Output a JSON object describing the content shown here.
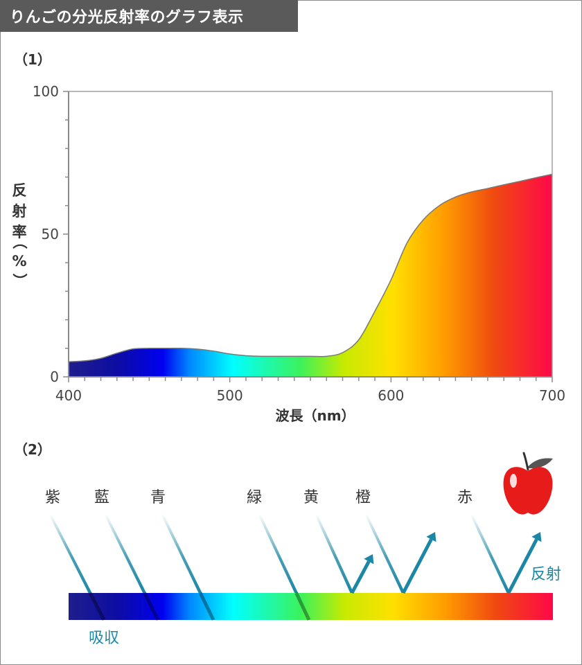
{
  "header": {
    "title": "りんごの分光反射率のグラフ表示"
  },
  "section1": {
    "label": "（1）"
  },
  "section2": {
    "label": "（2）"
  },
  "chart_data": {
    "type": "area",
    "xlabel": "波長（nm）",
    "ylabel": "反射率（%）",
    "ylabel_lines": [
      "反",
      "射",
      "率",
      "（",
      "%",
      "）"
    ],
    "xlim": [
      400,
      700
    ],
    "ylim": [
      0,
      100
    ],
    "x_ticks": [
      "400",
      "500",
      "600",
      "700"
    ],
    "y_ticks": [
      "0",
      "50",
      "100"
    ],
    "x": [
      400,
      410,
      420,
      430,
      440,
      450,
      460,
      470,
      480,
      490,
      500,
      510,
      520,
      530,
      540,
      550,
      560,
      570,
      580,
      590,
      600,
      610,
      620,
      630,
      640,
      650,
      660,
      670,
      680,
      690,
      700
    ],
    "values": [
      5.3,
      5.6,
      6.5,
      8.3,
      9.8,
      10.0,
      10.0,
      10.0,
      9.7,
      9.0,
      8.0,
      7.4,
      7.2,
      7.2,
      7.2,
      7.2,
      7.2,
      8.5,
      13,
      23,
      34,
      47,
      55,
      60,
      63,
      64.8,
      66,
      67.3,
      68.5,
      69.8,
      71
    ],
    "colors": {
      "axis": "#8a8a8a",
      "curve": "#777777"
    }
  },
  "diagram": {
    "colors": [
      "紫",
      "藍",
      "青",
      "緑",
      "黄",
      "橙",
      "赤"
    ],
    "absorb_label": "吸収",
    "reflect_label": "反射",
    "icon": "apple-icon",
    "accent": "#1b87a4"
  }
}
